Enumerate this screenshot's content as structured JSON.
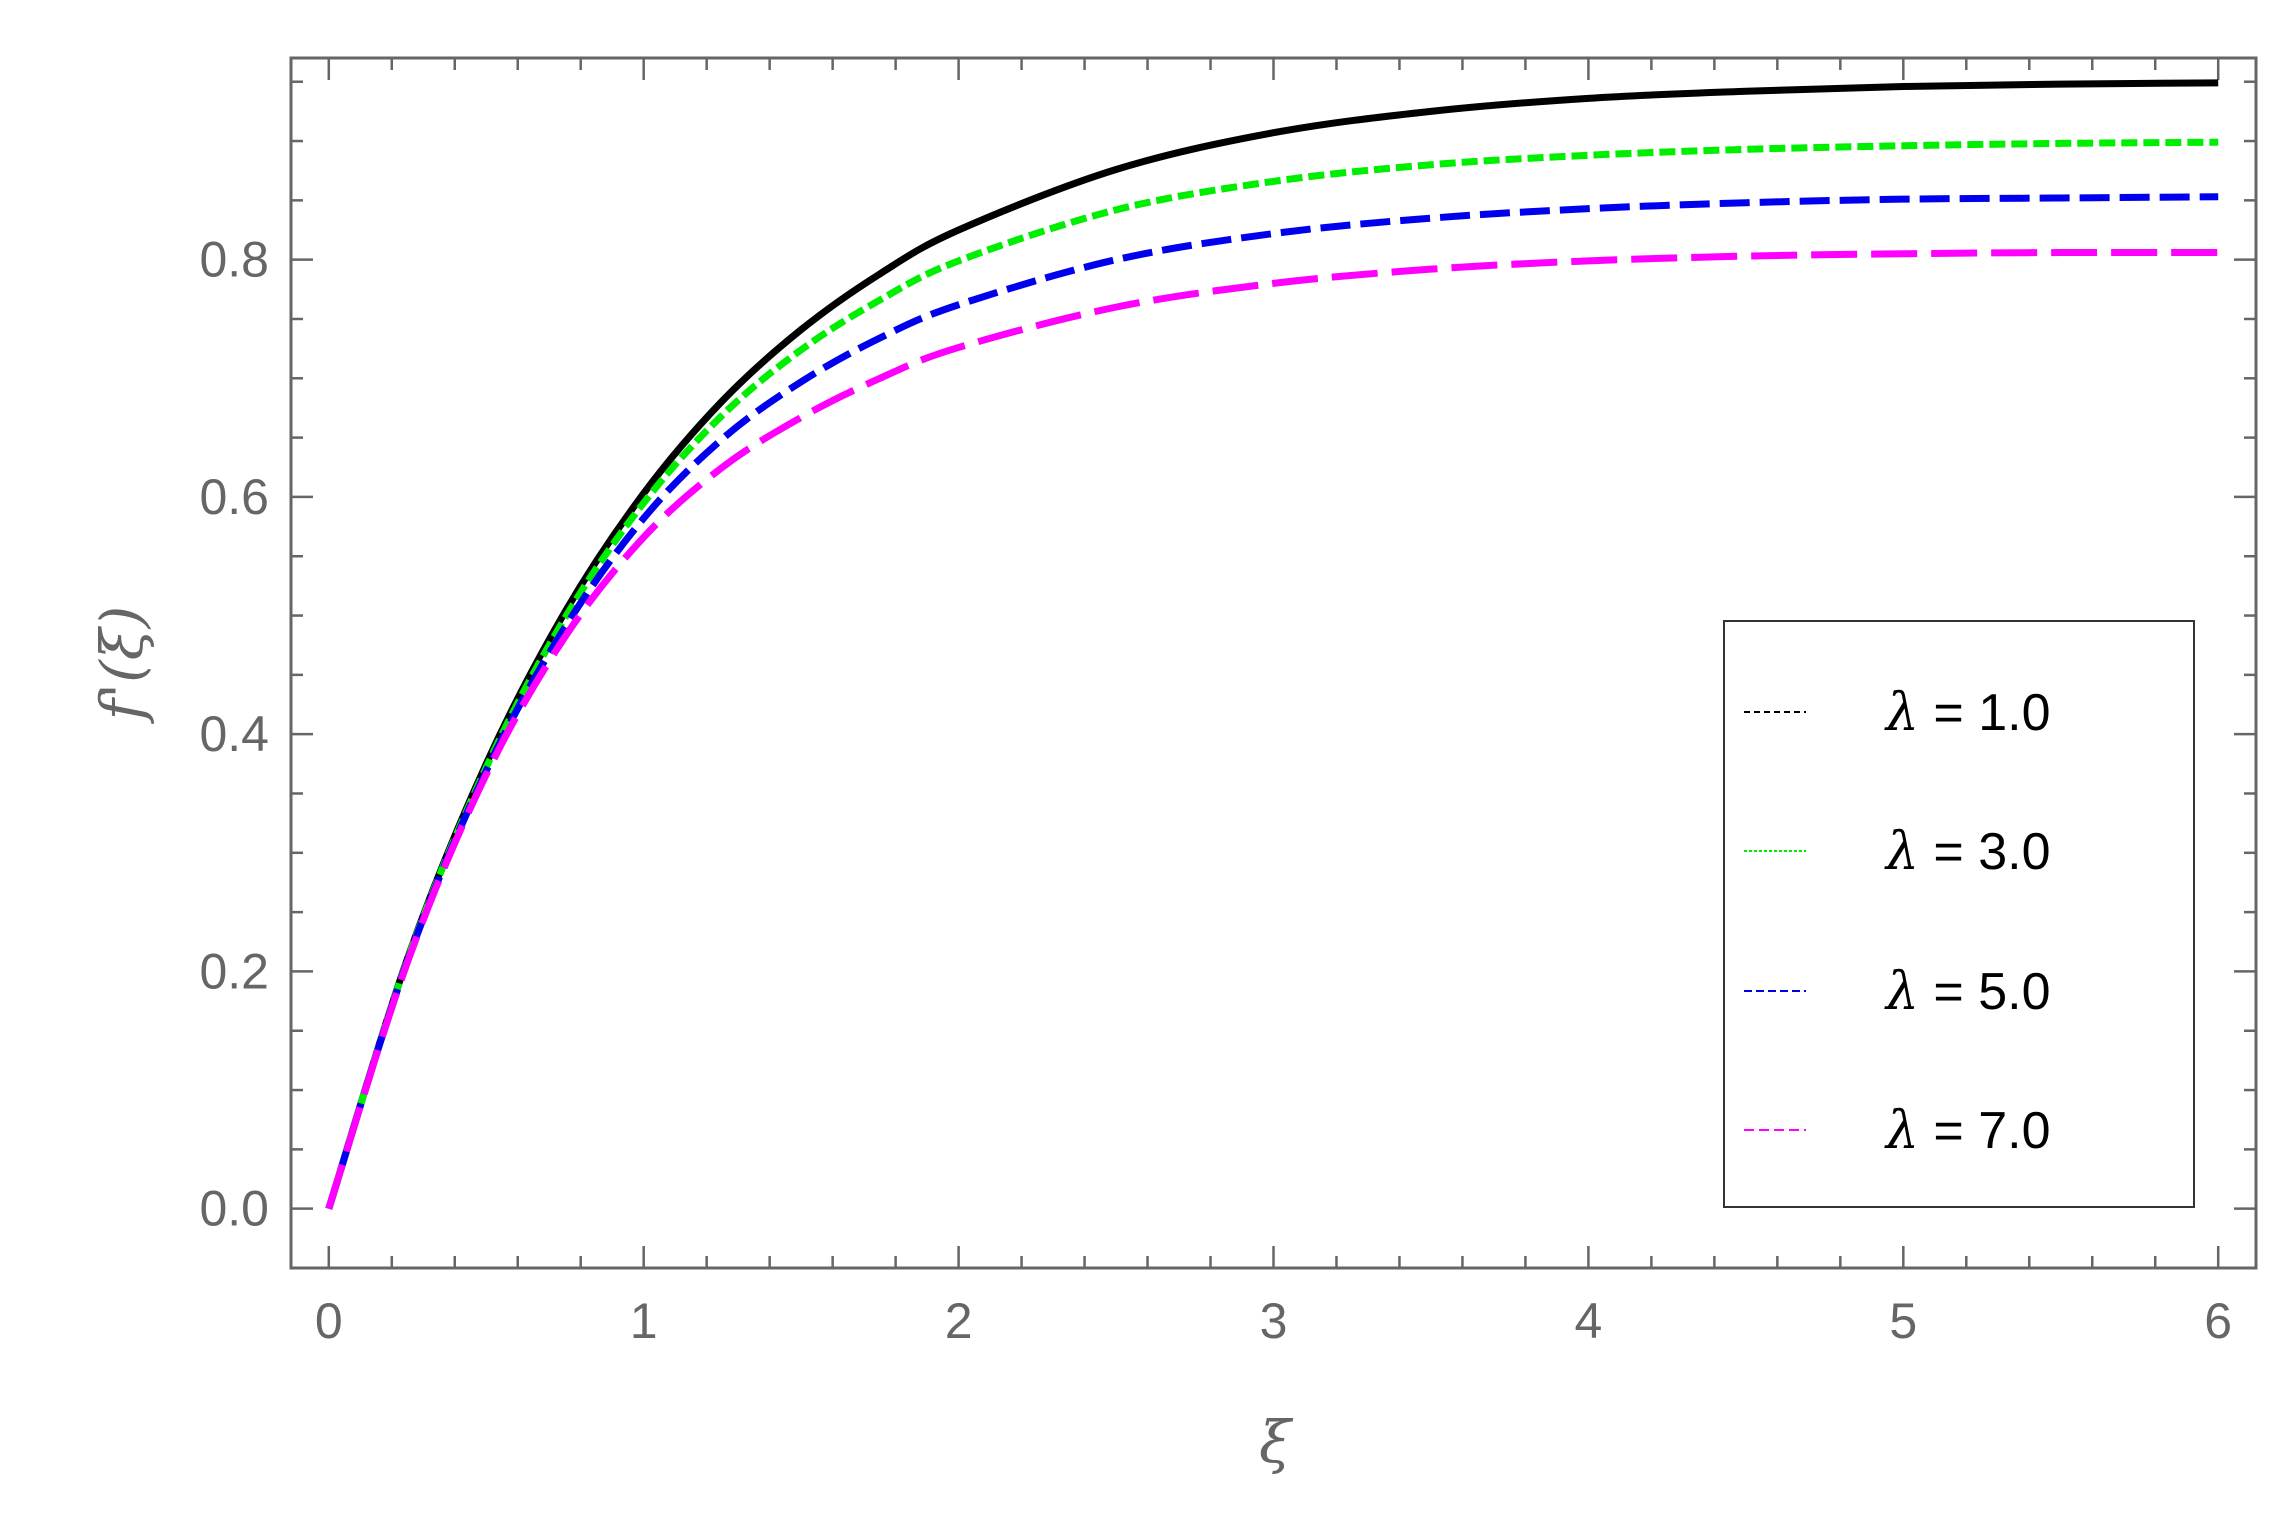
{
  "chart_data": {
    "type": "line",
    "xlabel": "ξ",
    "ylabel": "f'(ξ)",
    "xlim": [
      -0.12,
      6.12
    ],
    "ylim": [
      -0.05,
      0.97
    ],
    "xticks": [
      0,
      1,
      2,
      3,
      4,
      5,
      6
    ],
    "xtick_labels": [
      "0",
      "1",
      "2",
      "3",
      "4",
      "5",
      "6"
    ],
    "yticks": [
      0.0,
      0.2,
      0.4,
      0.6,
      0.8
    ],
    "ytick_labels": [
      "0.0",
      "0.2",
      "0.4",
      "0.6",
      "0.8"
    ],
    "grid": false,
    "legend_position": "bottom-right",
    "x": [
      0,
      0.25,
      0.5,
      0.75,
      1.0,
      1.25,
      1.5,
      1.75,
      2.0,
      2.5,
      3.0,
      3.5,
      4.0,
      4.5,
      5.0,
      5.5,
      6.0
    ],
    "series": [
      {
        "name": "λ = 1.0",
        "color": "#000000",
        "style": "solid",
        "values": [
          0,
          0.211,
          0.375,
          0.503,
          0.603,
          0.681,
          0.741,
          0.788,
          0.825,
          0.876,
          0.907,
          0.925,
          0.936,
          0.942,
          0.946,
          0.948,
          0.949
        ]
      },
      {
        "name": "λ = 3.0",
        "color": "#00ee00",
        "style": "dashed-short",
        "values": [
          0,
          0.21,
          0.372,
          0.498,
          0.595,
          0.669,
          0.724,
          0.766,
          0.799,
          0.842,
          0.866,
          0.88,
          0.888,
          0.893,
          0.896,
          0.898,
          0.899
        ]
      },
      {
        "name": "λ = 5.0",
        "color": "#0000ee",
        "style": "dashed-medium",
        "values": [
          0,
          0.209,
          0.369,
          0.49,
          0.582,
          0.649,
          0.697,
          0.734,
          0.762,
          0.8,
          0.822,
          0.835,
          0.843,
          0.848,
          0.851,
          0.852,
          0.853
        ]
      },
      {
        "name": "λ = 7.0",
        "color": "#ff00ff",
        "style": "dashed-long",
        "values": [
          0,
          0.208,
          0.366,
          0.482,
          0.566,
          0.625,
          0.667,
          0.7,
          0.726,
          0.76,
          0.78,
          0.792,
          0.799,
          0.803,
          0.805,
          0.806,
          0.806
        ]
      }
    ]
  }
}
